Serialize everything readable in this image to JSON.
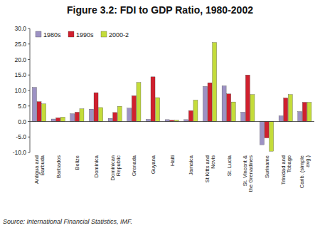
{
  "chart_data": {
    "type": "bar",
    "title": "Figure 3.2: FDI to GDP Ratio, 1980-2002",
    "source": "Source: International Financial Statistics, IMF.",
    "categories": [
      "Antigua and Barbuda",
      "Barbados",
      "Belize",
      "Dominica",
      "Dominican Republic",
      "Grenada",
      "Guyana",
      "Haiti",
      "Jamaica",
      "St Kitts and Nevis",
      "St. Lucia",
      "St. Vincent & the Grenadines",
      "Suriname",
      "Trinidad and Tobago",
      "Carib. (simple avg.)"
    ],
    "series": [
      {
        "name": "1980s",
        "color": "#9d92c4",
        "values": [
          11.0,
          0.8,
          2.5,
          4.0,
          1.0,
          4.3,
          0.7,
          0.6,
          0.6,
          11.3,
          11.5,
          3.0,
          -7.5,
          1.8,
          3.2
        ]
      },
      {
        "name": "1990s",
        "color": "#d0202e",
        "values": [
          6.4,
          1.2,
          3.0,
          9.3,
          2.9,
          8.3,
          14.4,
          0.4,
          3.5,
          12.5,
          8.9,
          15.0,
          -5.3,
          7.6,
          6.2
        ]
      },
      {
        "name": "2000-2",
        "color": "#c4dc3a",
        "values": [
          5.7,
          1.4,
          4.1,
          4.5,
          4.9,
          12.6,
          7.7,
          0.4,
          6.9,
          25.5,
          6.3,
          8.7,
          -9.6,
          8.7,
          6.2
        ]
      }
    ],
    "ylim": [
      -10,
      30
    ],
    "yticks": [
      {
        "value": -10,
        "label": "-10.0"
      },
      {
        "value": -5,
        "label": "-5.0"
      },
      {
        "value": 0,
        "label": "0.0"
      },
      {
        "value": 5,
        "label": "5.0"
      },
      {
        "value": 10,
        "label": "10.0"
      },
      {
        "value": 15,
        "label": "15.0"
      },
      {
        "value": 20,
        "label": "20.0"
      },
      {
        "value": 25,
        "label": "25.0"
      },
      {
        "value": 30,
        "label": "30.0"
      }
    ],
    "grid": false,
    "legend": "top-left"
  }
}
